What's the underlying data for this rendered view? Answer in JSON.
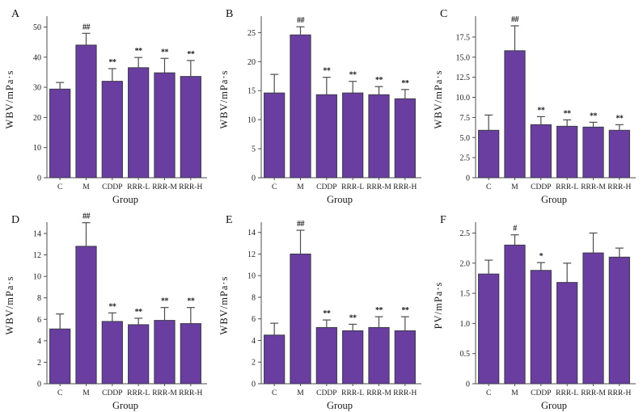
{
  "figure": {
    "background": "#ffffff",
    "bar_color": "#6a3da0",
    "bar_border_color": "#3a3a4a",
    "error_bar_color": "#4d4d4d",
    "axis_color": "#4d4d4d",
    "text_color": "#1a1a1a",
    "panel_letters": [
      "A",
      "B",
      "C",
      "D",
      "E",
      "F"
    ]
  },
  "chart_data": [
    {
      "type": "bar",
      "panel": "A",
      "xlabel": "Group",
      "ylabel": "WBV/mPa·s",
      "categories": [
        "C",
        "M",
        "CDDP",
        "RRR-L",
        "RRR-M",
        "RRR-H"
      ],
      "values": [
        29.4,
        44.0,
        32.0,
        36.5,
        34.8,
        33.6
      ],
      "errors": [
        2.2,
        3.9,
        4.2,
        3.4,
        4.8,
        5.3
      ],
      "annotations": [
        "",
        "##",
        "**",
        "**",
        "**",
        "**"
      ],
      "yticks": [
        "0",
        "10",
        "20",
        "30",
        "40",
        "50"
      ],
      "ylim": [
        0,
        52
      ],
      "legend": "none",
      "grid": false
    },
    {
      "type": "bar",
      "panel": "B",
      "xlabel": "Group",
      "ylabel": "WBV/mPa·s",
      "categories": [
        "C",
        "M",
        "CDDP",
        "RRR-L",
        "RRR-M",
        "RRR-H"
      ],
      "values": [
        14.6,
        24.6,
        14.3,
        14.6,
        14.3,
        13.6
      ],
      "errors": [
        3.2,
        1.4,
        3.0,
        2.0,
        1.4,
        1.6
      ],
      "annotations": [
        "",
        "##",
        "**",
        "**",
        "**",
        "**"
      ],
      "yticks": [
        "0",
        "5",
        "10",
        "15",
        "20",
        "25"
      ],
      "ylim": [
        0,
        27
      ],
      "legend": "none",
      "grid": false
    },
    {
      "type": "bar",
      "panel": "C",
      "xlabel": "Group",
      "ylabel": "WBV/mPa·s",
      "categories": [
        "C",
        "M",
        "CDDP",
        "RRR-L",
        "RRR-M",
        "RRR-H"
      ],
      "values": [
        5.9,
        15.8,
        6.6,
        6.4,
        6.3,
        5.9
      ],
      "errors": [
        1.9,
        3.1,
        1.0,
        0.8,
        0.6,
        0.7
      ],
      "annotations": [
        "",
        "##",
        "**",
        "**",
        "**",
        "**"
      ],
      "yticks": [
        "0",
        "2.5",
        "5.0",
        "7.5",
        "10.0",
        "12.5",
        "15.0",
        "17.5"
      ],
      "ylim": [
        0,
        19.5
      ],
      "legend": "none",
      "grid": false
    },
    {
      "type": "bar",
      "panel": "D",
      "xlabel": "Group",
      "ylabel": "WBV/mPa·s",
      "categories": [
        "C",
        "M",
        "CDDP",
        "RRR-L",
        "RRR-M",
        "RRR-H"
      ],
      "values": [
        5.1,
        12.8,
        5.8,
        5.5,
        5.9,
        5.6
      ],
      "errors": [
        1.4,
        2.2,
        0.8,
        0.6,
        1.2,
        1.5
      ],
      "annotations": [
        "",
        "##",
        "**",
        "**",
        "**",
        "**"
      ],
      "yticks": [
        "0",
        "2",
        "4",
        "6",
        "8",
        "10",
        "12",
        "14"
      ],
      "ylim": [
        0,
        14.6
      ],
      "legend": "none",
      "grid": false
    },
    {
      "type": "bar",
      "panel": "E",
      "xlabel": "Group",
      "ylabel": "WBV/mPa·s",
      "categories": [
        "C",
        "M",
        "CDDP",
        "RRR-L",
        "RRR-M",
        "RRR-H"
      ],
      "values": [
        4.5,
        12.0,
        5.2,
        4.9,
        5.2,
        4.9
      ],
      "errors": [
        1.1,
        2.2,
        0.7,
        0.6,
        1.0,
        1.3
      ],
      "annotations": [
        "",
        "##",
        "**",
        "**",
        "**",
        "**"
      ],
      "yticks": [
        "0",
        "2",
        "4",
        "6",
        "8",
        "10",
        "12",
        "14"
      ],
      "ylim": [
        0,
        14.5
      ],
      "legend": "none",
      "grid": false
    },
    {
      "type": "bar",
      "panel": "F",
      "xlabel": "Group",
      "ylabel": "PV/mPa·s",
      "categories": [
        "C",
        "M",
        "CDDP",
        "RRR-L",
        "RRR-M",
        "RRR-H"
      ],
      "values": [
        1.82,
        2.3,
        1.88,
        1.68,
        2.17,
        2.1
      ],
      "errors": [
        0.23,
        0.17,
        0.13,
        0.32,
        0.33,
        0.15
      ],
      "annotations": [
        "",
        "#",
        "*",
        "",
        "",
        ""
      ],
      "yticks": [
        "0",
        "0.5",
        "1.0",
        "1.5",
        "2.0",
        "2.5"
      ],
      "ylim": [
        0,
        2.6
      ],
      "legend": "none",
      "grid": false
    }
  ]
}
